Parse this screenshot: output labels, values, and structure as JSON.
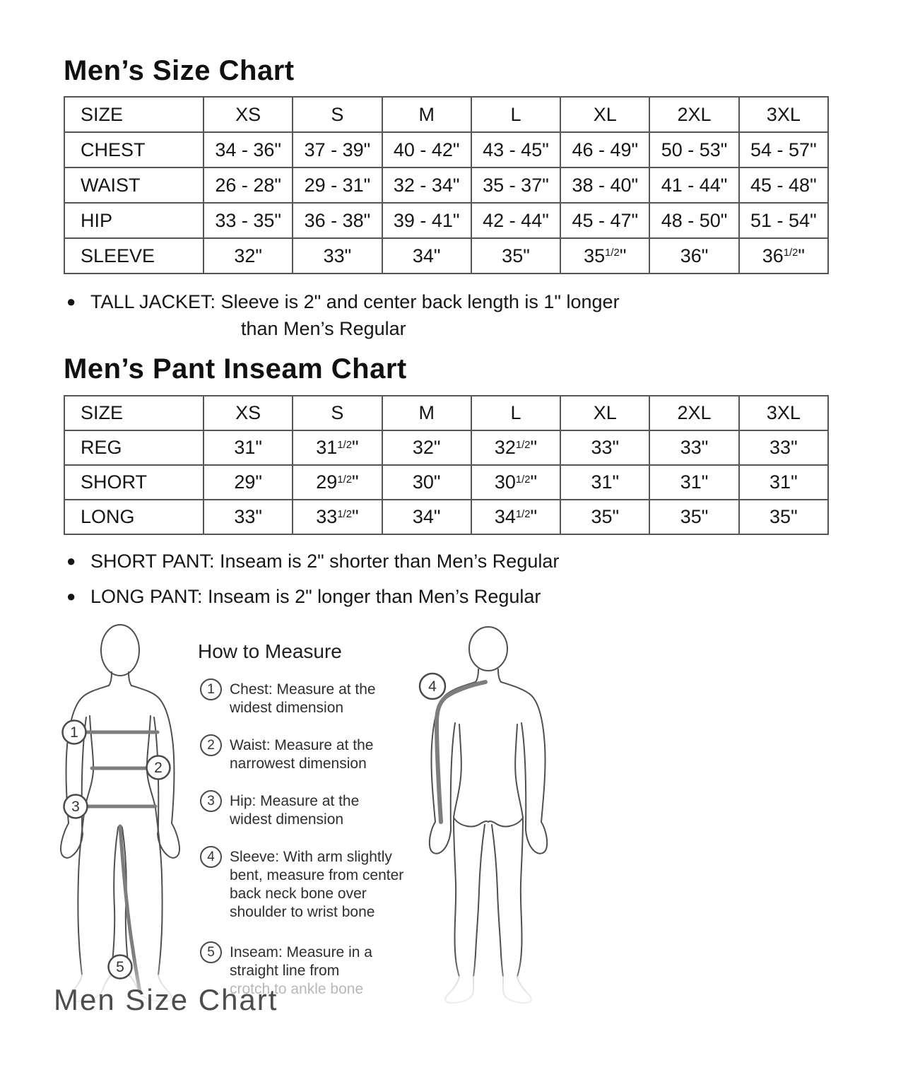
{
  "page": {
    "size_chart": {
      "title": "Men’s Size Chart",
      "table": {
        "header": [
          "SIZE",
          "XS",
          "S",
          "M",
          "L",
          "XL",
          "2XL",
          "3XL"
        ],
        "rows": [
          {
            "label": "CHEST",
            "cells": [
              "34 - 36\"",
              "37 - 39\"",
              "40 - 42\"",
              "43 - 45\"",
              "46 - 49\"",
              "50 - 53\"",
              "54 - 57\""
            ]
          },
          {
            "label": "WAIST",
            "cells": [
              "26 - 28\"",
              "29 - 31\"",
              "32 - 34\"",
              "35 - 37\"",
              "38 - 40\"",
              "41 - 44\"",
              "45 - 48\""
            ]
          },
          {
            "label": "HIP",
            "cells": [
              "33 - 35\"",
              "36 - 38\"",
              "39 - 41\"",
              "42 - 44\"",
              "45 - 47\"",
              "48 - 50\"",
              "51 - 54\""
            ]
          },
          {
            "label": "SLEEVE",
            "cells": [
              "32\"",
              "33\"",
              "34\"",
              "35\"",
              "35{1/2}\"",
              "36\"",
              "36{1/2}\""
            ]
          }
        ]
      },
      "note_line1": "TALL JACKET: Sleeve is 2\" and center back length is 1\" longer",
      "note_line2": "than Men’s Regular"
    },
    "inseam_chart": {
      "title": "Men’s Pant Inseam Chart",
      "table": {
        "header": [
          "SIZE",
          "XS",
          "S",
          "M",
          "L",
          "XL",
          "2XL",
          "3XL"
        ],
        "rows": [
          {
            "label": "REG",
            "cells": [
              "31\"",
              "31{1/2}\"",
              "32\"",
              "32{1/2}\"",
              "33\"",
              "33\"",
              "33\""
            ]
          },
          {
            "label": "SHORT",
            "cells": [
              "29\"",
              "29{1/2}\"",
              "30\"",
              "30{1/2}\"",
              "31\"",
              "31\"",
              "31\""
            ]
          },
          {
            "label": "LONG",
            "cells": [
              "33\"",
              "33{1/2}\"",
              "34\"",
              "34{1/2}\"",
              "35\"",
              "35\"",
              "35\""
            ]
          }
        ]
      },
      "notes": [
        "SHORT PANT: Inseam is 2\" shorter than Men’s Regular",
        "LONG PANT: Inseam is 2\" longer than Men’s Regular"
      ]
    },
    "how_to_measure": {
      "title": "How to Measure",
      "items": [
        {
          "num": "1",
          "lines": [
            "Chest: Measure at the",
            "widest dimension"
          ]
        },
        {
          "num": "2",
          "lines": [
            "Waist: Measure at the",
            "narrowest dimension"
          ]
        },
        {
          "num": "3",
          "lines": [
            "Hip: Measure at the",
            "widest dimension"
          ]
        },
        {
          "num": "4",
          "lines": [
            "Sleeve: With arm slightly",
            "bent, measure from center",
            "back neck bone over",
            "shoulder to wrist bone"
          ]
        },
        {
          "num": "5",
          "lines": [
            "Inseam: Measure in a",
            "straight line from"
          ],
          "faded_line": "crotch to ankle bone"
        }
      ],
      "front_figure_markers": [
        "1",
        "2",
        "3",
        "5"
      ],
      "back_figure_marker": "4"
    },
    "watermark": "Men Size Chart"
  },
  "colors": {
    "text": "#1a1a1a",
    "table_border": "#555555",
    "figure_outline": "#4f4f4f",
    "measure_line_gray": "#7d7d7d",
    "faded_gray": "#b8b8b8",
    "watermark_gray": "#4d4d4d"
  }
}
